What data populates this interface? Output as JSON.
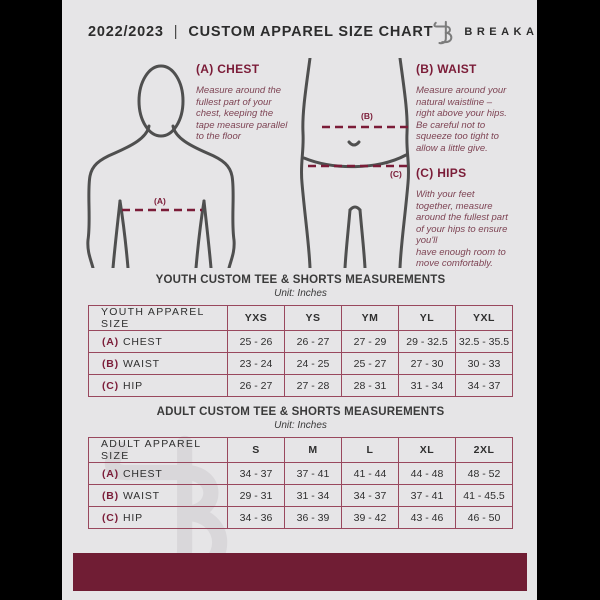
{
  "header": {
    "year": "2022/2023",
    "separator": "|",
    "title": "CUSTOM APPAREL SIZE CHART",
    "brand": "BREAKAWAY"
  },
  "guide": {
    "sections": [
      {
        "heading": "(A) CHEST",
        "tag": "(A)",
        "body": "Measure around the\nfullest part of your\nchest, keeping the\ntape measure parallel\nto the floor"
      },
      {
        "heading": "(B) WAIST",
        "tag": "(B)",
        "body": "Measure around your\nnatural waistline –\nright above your hips.\nBe careful not to\nsqueeze too tight to\nallow a little give."
      },
      {
        "heading": "(C) HIPS",
        "tag": "(C)",
        "body": "With your feet\ntogether, measure\naround the fullest part\nof your hips to ensure\nyou'll\nhave enough room to\nmove comfortably."
      }
    ]
  },
  "youth_table": {
    "title": "YOUTH CUSTOM TEE & SHORTS MEASUREMENTS",
    "unit": "Unit: Inches",
    "size_label": "YOUTH APPAREL SIZE",
    "columns": [
      "YXS",
      "YS",
      "YM",
      "YL",
      "YXL"
    ],
    "rows": [
      {
        "tag": "(A)",
        "label": "CHEST",
        "values": [
          "25 - 26",
          "26 - 27",
          "27 - 29",
          "29 - 32.5",
          "32.5 - 35.5"
        ]
      },
      {
        "tag": "(B)",
        "label": "WAIST",
        "values": [
          "23 - 24",
          "24 - 25",
          "25 - 27",
          "27 - 30",
          "30 - 33"
        ]
      },
      {
        "tag": "(C)",
        "label": "HIP",
        "values": [
          "26 - 27",
          "27 - 28",
          "28 - 31",
          "31 - 34",
          "34 - 37"
        ]
      }
    ]
  },
  "adult_table": {
    "title": "ADULT CUSTOM TEE & SHORTS MEASUREMENTS",
    "unit": "Unit: Inches",
    "size_label": "ADULT APPAREL SIZE",
    "columns": [
      "S",
      "M",
      "L",
      "XL",
      "2XL"
    ],
    "rows": [
      {
        "tag": "(A)",
        "label": "CHEST",
        "values": [
          "34 - 37",
          "37 - 41",
          "41 - 44",
          "44 - 48",
          "48 - 52"
        ]
      },
      {
        "tag": "(B)",
        "label": "WAIST",
        "values": [
          "29 - 31",
          "31 - 34",
          "34 - 37",
          "37 - 41",
          "41 - 45.5"
        ]
      },
      {
        "tag": "(C)",
        "label": "HIP",
        "values": [
          "34 - 36",
          "36 - 39",
          "39 - 42",
          "43 - 46",
          "46 - 50"
        ]
      }
    ]
  },
  "colors": {
    "maroon": "#7b1c38",
    "footer_bar": "#701d34",
    "page_bg": "#e6e5e7",
    "diagram_stroke": "#4f4f4f",
    "table_line": "#99485e"
  }
}
